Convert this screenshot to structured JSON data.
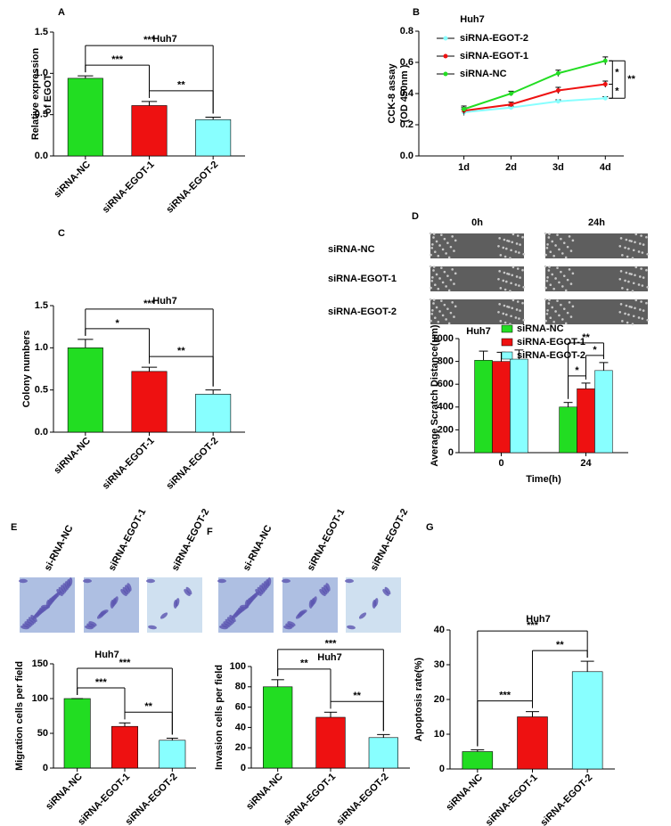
{
  "chart_data": [
    {
      "type": "bar",
      "panel": "A",
      "title": "Huh7",
      "ylabel": [
        "Relative expression",
        "of EGOT"
      ],
      "categories": [
        "siRNA-NC",
        "siRNA-EGOT-1",
        "siRNA-EGOT-2"
      ],
      "values": [
        0.94,
        0.61,
        0.44
      ],
      "errors": [
        0.03,
        0.05,
        0.03
      ],
      "colors": [
        "#22dd22",
        "#ee1111",
        "#88ffff"
      ],
      "ylim": [
        0,
        1.5
      ],
      "yticks": [
        {
          "value": 0,
          "label": "0.0"
        },
        0.5,
        {
          "value": 1,
          "label": "1.0"
        },
        1.5
      ],
      "annotations": [
        {
          "text": "***",
          "between": [
            0,
            1
          ]
        },
        {
          "text": "**",
          "between": [
            1,
            2
          ]
        },
        {
          "text": "***",
          "between": [
            0,
            2
          ]
        }
      ]
    },
    {
      "type": "line",
      "panel": "B",
      "title": "Huh7",
      "ylabel": [
        "CCK-8 assay",
        "(OD 450nm )"
      ],
      "categories": [
        "1d",
        "2d",
        "3d",
        "4d"
      ],
      "series": [
        {
          "name": "siRNA-EGOT-2",
          "color": "#88ffff",
          "values": [
            0.28,
            0.31,
            0.35,
            0.37
          ],
          "errors": [
            0.02,
            0.01,
            0.01,
            0.01
          ]
        },
        {
          "name": "siRNA-EGOT-1",
          "color": "#ee1111",
          "values": [
            0.29,
            0.33,
            0.42,
            0.46
          ],
          "errors": [
            0.02,
            0.015,
            0.02,
            0.02
          ]
        },
        {
          "name": "siRNA-NC",
          "color": "#22dd22",
          "values": [
            0.3,
            0.4,
            0.53,
            0.61
          ],
          "errors": [
            0.02,
            0.015,
            0.02,
            0.025
          ]
        }
      ],
      "ylim": [
        0,
        0.8
      ],
      "yticks": [
        {
          "value": 0,
          "label": "0.0"
        },
        0.2,
        0.4,
        0.6,
        0.8
      ],
      "annotations": [
        {
          "text": "*",
          "between": [
            1,
            2
          ]
        },
        {
          "text": "*",
          "between": [
            0,
            1
          ]
        },
        {
          "text": "**",
          "between": [
            0,
            2
          ]
        }
      ]
    },
    {
      "type": "bar",
      "panel": "C",
      "title": "Huh7",
      "ylabel": [
        "Colony numbers"
      ],
      "categories": [
        "siRNA-NC",
        "siRNA-EGOT-1",
        "siRNA-EGOT-2"
      ],
      "values": [
        1.0,
        0.72,
        0.45
      ],
      "errors": [
        0.1,
        0.05,
        0.05
      ],
      "colors": [
        "#22dd22",
        "#ee1111",
        "#88ffff"
      ],
      "ylim": [
        0,
        1.5
      ],
      "yticks": [
        {
          "value": 0,
          "label": "0.0"
        },
        0.5,
        {
          "value": 1,
          "label": "1.0"
        },
        1.5
      ],
      "annotations": [
        {
          "text": "*",
          "between": [
            0,
            1
          ]
        },
        {
          "text": "**",
          "between": [
            1,
            2
          ]
        },
        {
          "text": "***",
          "between": [
            0,
            2
          ]
        }
      ]
    },
    {
      "type": "bar",
      "panel": "D",
      "title": "Huh7",
      "col_labels": [
        "0h",
        "24h"
      ],
      "row_labels": [
        "siRNA-NC",
        "siRNA-EGOT-1",
        "siRNA-EGOT-2"
      ],
      "ylabel": [
        "Average Scratch Distance(μm)"
      ],
      "xlabel": "Time(h)",
      "categories": [
        "0",
        "24"
      ],
      "series": [
        {
          "name": "siRNA-NC",
          "color": "#22dd22",
          "values": [
            810,
            400
          ],
          "errors": [
            80,
            40
          ]
        },
        {
          "name": "siRNA-EGOT-1",
          "color": "#ee1111",
          "values": [
            800,
            560
          ],
          "errors": [
            80,
            50
          ]
        },
        {
          "name": "siRNA-EGOT-2",
          "color": "#88ffff",
          "values": [
            820,
            720
          ],
          "errors": [
            80,
            70
          ]
        }
      ],
      "ylim": [
        0,
        1000
      ],
      "yticks": [
        0,
        200,
        400,
        600,
        800,
        1000
      ],
      "annotations": [
        {
          "text": "*",
          "group": 1,
          "between": [
            0,
            1
          ]
        },
        {
          "text": "*",
          "group": 1,
          "between": [
            1,
            2
          ]
        },
        {
          "text": "**",
          "group": 1,
          "between": [
            0,
            2
          ]
        }
      ]
    },
    {
      "type": "bar",
      "panel": "E",
      "title": "Huh7",
      "image_labels": [
        "si-RNA-NC",
        "siRNA-EGOT-1",
        "siRNA-EGOT-2"
      ],
      "ylabel": [
        "Migration cells per field"
      ],
      "categories": [
        "siRNA-NC",
        "siRNA-EGOT-1",
        "siRNA-EGOT-2"
      ],
      "values": [
        100,
        60,
        40
      ],
      "errors": [
        0,
        5,
        3
      ],
      "colors": [
        "#22dd22",
        "#ee1111",
        "#88ffff"
      ],
      "ylim": [
        0,
        150
      ],
      "yticks": [
        0,
        50,
        100,
        150
      ],
      "annotations": [
        {
          "text": "***",
          "between": [
            0,
            1
          ]
        },
        {
          "text": "**",
          "between": [
            1,
            2
          ]
        },
        {
          "text": "***",
          "between": [
            0,
            2
          ]
        }
      ]
    },
    {
      "type": "bar",
      "panel": "F",
      "title": "Huh7",
      "image_labels": [
        "si-RNA-NC",
        "siRNA-EGOT-1",
        "siRNA-EGOT-2"
      ],
      "ylabel": [
        "Invasion cells per field"
      ],
      "categories": [
        "siRNA-NC",
        "siRNA-EGOT-1",
        "siRNA-EGOT-2"
      ],
      "values": [
        80,
        50,
        30
      ],
      "errors": [
        7,
        5,
        3
      ],
      "colors": [
        "#22dd22",
        "#ee1111",
        "#88ffff"
      ],
      "ylim": [
        0,
        100
      ],
      "yticks": [
        0,
        20,
        40,
        60,
        80,
        100
      ],
      "annotations": [
        {
          "text": "**",
          "between": [
            0,
            1
          ]
        },
        {
          "text": "**",
          "between": [
            1,
            2
          ]
        },
        {
          "text": "***",
          "between": [
            0,
            2
          ]
        }
      ]
    },
    {
      "type": "bar",
      "panel": "G",
      "title": "Huh7",
      "ylabel": [
        "Apoptosis rate(%)"
      ],
      "categories": [
        "siRNA-NC",
        "siRNA-EGOT-1",
        "siRNA-EGOT-2"
      ],
      "values": [
        5,
        15,
        28
      ],
      "errors": [
        0.5,
        1.5,
        3
      ],
      "colors": [
        "#22dd22",
        "#ee1111",
        "#88ffff"
      ],
      "ylim": [
        0,
        40
      ],
      "yticks": [
        0,
        10,
        20,
        30,
        40
      ],
      "annotations": [
        {
          "text": "***",
          "between": [
            0,
            1
          ]
        },
        {
          "text": "**",
          "between": [
            1,
            2
          ]
        },
        {
          "text": "***",
          "between": [
            0,
            2
          ]
        }
      ]
    }
  ]
}
